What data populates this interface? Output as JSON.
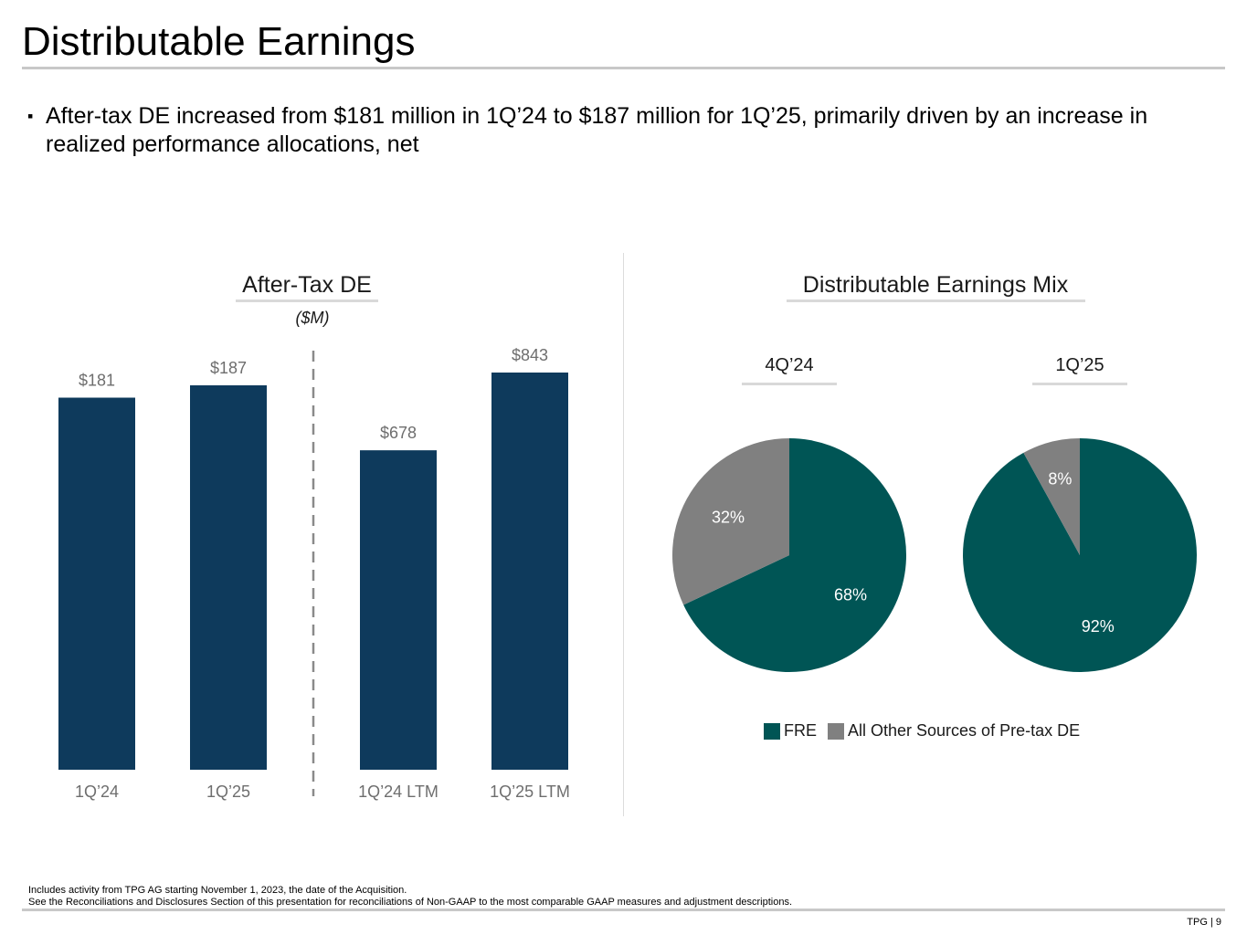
{
  "title": "Distributable Earnings",
  "bullet": {
    "mark": "▪",
    "text": "After-tax DE increased from $181 million in 1Q’24 to $187 million for 1Q’25, primarily driven by an increase in realized performance allocations, net"
  },
  "colors": {
    "bar": "#0e3a5c",
    "fre": "#005555",
    "other": "#808080",
    "label": "#6e6e6e"
  },
  "chart_data": [
    {
      "type": "bar",
      "title": "After-Tax DE",
      "subtitle": "($M)",
      "categories": [
        "1Q’24",
        "1Q’25",
        "1Q’24 LTM",
        "1Q’25 LTM"
      ],
      "values": [
        181,
        187,
        678,
        843
      ],
      "value_labels": [
        "$181",
        "$187",
        "$678",
        "$843"
      ],
      "groups": [
        {
          "categories": [
            "1Q’24",
            "1Q’25"
          ],
          "ylim": [
            0,
            187
          ]
        },
        {
          "categories": [
            "1Q’24 LTM",
            "1Q’25 LTM"
          ],
          "ylim": [
            0,
            843
          ]
        }
      ],
      "xlabel": "",
      "ylabel": ""
    },
    {
      "type": "pie",
      "title": "Distributable Earnings Mix",
      "legend": [
        "FRE",
        "All Other Sources of Pre-tax DE"
      ],
      "legend_position": "bottom",
      "pies": [
        {
          "label": "4Q’24",
          "slices": [
            {
              "name": "FRE",
              "value": 68,
              "label": "68%"
            },
            {
              "name": "All Other Sources of Pre-tax DE",
              "value": 32,
              "label": "32%"
            }
          ]
        },
        {
          "label": "1Q’25",
          "slices": [
            {
              "name": "FRE",
              "value": 92,
              "label": "92%"
            },
            {
              "name": "All Other Sources of Pre-tax DE",
              "value": 8,
              "label": "8%"
            }
          ]
        }
      ]
    }
  ],
  "footnotes": [
    "Includes activity from TPG AG starting November 1, 2023, the date of the Acquisition.",
    "See the Reconciliations and Disclosures Section of this presentation for reconciliations of Non-GAAP to the most comparable GAAP measures and adjustment descriptions."
  ],
  "page_number": "TPG | 9"
}
